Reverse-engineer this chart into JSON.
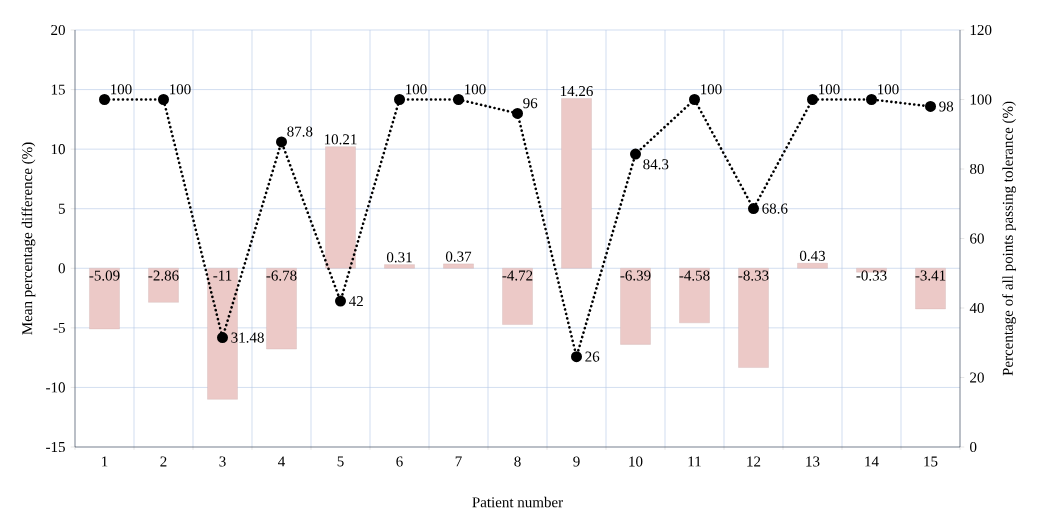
{
  "chart_data": {
    "type": "bar",
    "xlabel": "Patient number",
    "ylabel": "Mean percentage difference (%)",
    "y2label": "Percentage of all points passing tolerance (%)",
    "categories": [
      "1",
      "2",
      "3",
      "4",
      "5",
      "6",
      "7",
      "8",
      "9",
      "10",
      "11",
      "12",
      "13",
      "14",
      "15"
    ],
    "series": [
      {
        "color": "#ecc9c7",
        "values": [
          -5.09,
          -2.86,
          -11,
          -6.78,
          10.21,
          0.31,
          0.37,
          -4.72,
          14.26,
          -6.39,
          -4.58,
          -8.33,
          0.43,
          -0.33,
          -3.41
        ]
      },
      {
        "type": "line",
        "axis": "y2",
        "color": "#000000",
        "marker": "circle",
        "line_style": "dotted",
        "values": [
          100,
          100,
          31.48,
          87.8,
          42,
          100,
          100,
          96,
          26,
          84.3,
          100,
          68.6,
          100,
          100,
          98
        ]
      }
    ],
    "ylim": [
      -15,
      20
    ],
    "yticks": [
      -15,
      -10,
      -5,
      0,
      5,
      10,
      15,
      20
    ],
    "y2lim": [
      0,
      120
    ],
    "y2ticks": [
      0,
      20,
      40,
      60,
      80,
      100,
      120
    ],
    "grid": true,
    "data_labels": true
  }
}
